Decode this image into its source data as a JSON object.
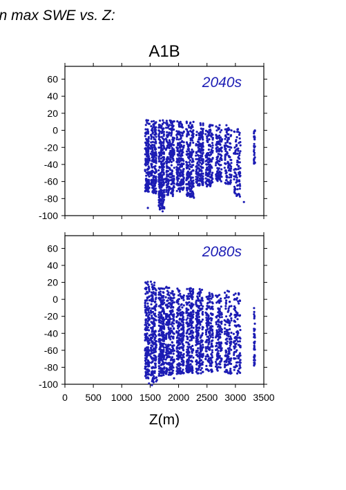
{
  "header_text": "in max SWE vs. Z:",
  "chart_data": [
    {
      "type": "scatter",
      "title": "A1B",
      "annotation": "2040s",
      "xlabel": "",
      "ylabel": "",
      "xlim": [
        0,
        3500
      ],
      "ylim": [
        -100,
        75
      ],
      "yticks": [
        -100,
        -80,
        -60,
        -40,
        -20,
        0,
        20,
        40,
        60
      ],
      "xticks_labeled": false,
      "grid": false,
      "point_color": "#1c1cb4",
      "clusters": [
        {
          "x": 1450,
          "width": 80,
          "ymin": -72,
          "ymax": 13,
          "count": 160
        },
        {
          "x": 1560,
          "width": 100,
          "ymin": -74,
          "ymax": 12,
          "count": 180
        },
        {
          "x": 1700,
          "width": 100,
          "ymin": -95,
          "ymax": 12,
          "count": 240
        },
        {
          "x": 1850,
          "width": 150,
          "ymin": -76,
          "ymax": 12,
          "count": 220
        },
        {
          "x": 2030,
          "width": 130,
          "ymin": -72,
          "ymax": 11,
          "count": 200
        },
        {
          "x": 2200,
          "width": 130,
          "ymin": -78,
          "ymax": 11,
          "count": 200
        },
        {
          "x": 2370,
          "width": 130,
          "ymin": -66,
          "ymax": 9,
          "count": 170
        },
        {
          "x": 2540,
          "width": 130,
          "ymin": -66,
          "ymax": 7,
          "count": 150
        },
        {
          "x": 2710,
          "width": 110,
          "ymin": -60,
          "ymax": 7,
          "count": 120
        },
        {
          "x": 2870,
          "width": 120,
          "ymin": -63,
          "ymax": 7,
          "count": 110
        },
        {
          "x": 3030,
          "width": 120,
          "ymin": -78,
          "ymax": 6,
          "count": 90
        },
        {
          "x": 3335,
          "width": 20,
          "ymin": -40,
          "ymax": 3,
          "count": 35
        }
      ],
      "outliers": [
        {
          "x": 1460,
          "y": -91
        },
        {
          "x": 1720,
          "y": -95
        },
        {
          "x": 1900,
          "y": -77
        },
        {
          "x": 2270,
          "y": -79
        },
        {
          "x": 3150,
          "y": -84
        }
      ]
    },
    {
      "type": "scatter",
      "title": "",
      "annotation": "2080s",
      "xlabel": "Z(m)",
      "ylabel": "",
      "xlim": [
        0,
        3500
      ],
      "ylim": [
        -100,
        75
      ],
      "yticks": [
        -100,
        -80,
        -60,
        -40,
        -20,
        0,
        20,
        40,
        60
      ],
      "xticks": [
        0,
        500,
        1000,
        1500,
        2000,
        2500,
        3000,
        3500
      ],
      "xticks_labeled": true,
      "grid": false,
      "point_color": "#1c1cb4",
      "clusters": [
        {
          "x": 1450,
          "width": 80,
          "ymin": -93,
          "ymax": 21,
          "count": 180
        },
        {
          "x": 1560,
          "width": 100,
          "ymin": -98,
          "ymax": 22,
          "count": 200
        },
        {
          "x": 1700,
          "width": 100,
          "ymin": -90,
          "ymax": 14,
          "count": 250
        },
        {
          "x": 1850,
          "width": 150,
          "ymin": -89,
          "ymax": 15,
          "count": 240
        },
        {
          "x": 2030,
          "width": 130,
          "ymin": -88,
          "ymax": 14,
          "count": 220
        },
        {
          "x": 2200,
          "width": 130,
          "ymin": -87,
          "ymax": 15,
          "count": 220
        },
        {
          "x": 2370,
          "width": 130,
          "ymin": -88,
          "ymax": 14,
          "count": 200
        },
        {
          "x": 2540,
          "width": 130,
          "ymin": -86,
          "ymax": 10,
          "count": 180
        },
        {
          "x": 2710,
          "width": 110,
          "ymin": -84,
          "ymax": 8,
          "count": 150
        },
        {
          "x": 2870,
          "width": 120,
          "ymin": -88,
          "ymax": 14,
          "count": 140
        },
        {
          "x": 3030,
          "width": 120,
          "ymin": -89,
          "ymax": 8,
          "count": 110
        },
        {
          "x": 3335,
          "width": 20,
          "ymin": -78,
          "ymax": -3,
          "count": 45
        }
      ],
      "outliers": [
        {
          "x": 1480,
          "y": -99
        },
        {
          "x": 1530,
          "y": -101
        },
        {
          "x": 1620,
          "y": -95
        },
        {
          "x": 1920,
          "y": -93
        }
      ]
    }
  ]
}
